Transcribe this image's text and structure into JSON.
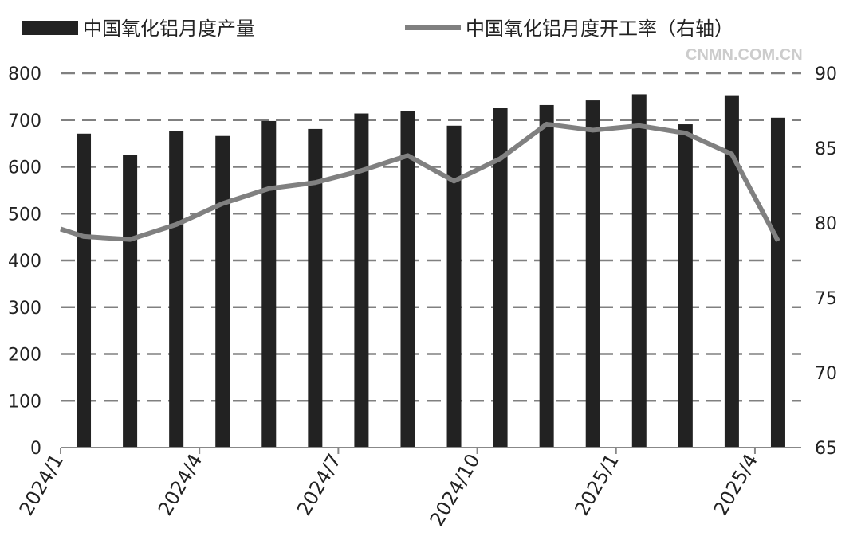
{
  "chart_data": {
    "type": "bar+line",
    "categories": [
      "2024/1",
      "2024/2",
      "2024/3",
      "2024/4",
      "2024/5",
      "2024/6",
      "2024/7",
      "2024/8",
      "2024/9",
      "2024/10",
      "2024/11",
      "2024/12",
      "2025/1",
      "2025/2",
      "2025/3",
      "2025/4"
    ],
    "x_tick_labels": [
      "2024/1",
      "2024/4",
      "2024/7",
      "2024/10",
      "2025/1",
      "2025/4"
    ],
    "series": [
      {
        "name": "中国氧化铝月度产量",
        "type": "bar",
        "axis": "left",
        "color": "#222222",
        "values": [
          671,
          625,
          676,
          666,
          698,
          681,
          714,
          720,
          688,
          726,
          732,
          742,
          755,
          691,
          753,
          705
        ]
      },
      {
        "name": "中国氧化铝月度开工率（右轴）",
        "type": "line",
        "axis": "right",
        "color": "#808080",
        "values": [
          79.1,
          78.9,
          79.9,
          81.3,
          82.3,
          82.7,
          83.5,
          84.5,
          82.8,
          84.3,
          86.6,
          86.2,
          86.5,
          86.0,
          84.6,
          78.8
        ],
        "left_edge_value": 79.6
      }
    ],
    "ylim": [
      0,
      800
    ],
    "yticks": [
      "0",
      "100",
      "200",
      "300",
      "400",
      "500",
      "600",
      "700",
      "800"
    ],
    "y2lim": [
      65,
      90
    ],
    "y2ticks": [
      "65",
      "70",
      "75",
      "80",
      "85",
      "90"
    ],
    "grid": "dashed horizontal",
    "legend": "top"
  },
  "watermark": "CNMN.COM.CN"
}
